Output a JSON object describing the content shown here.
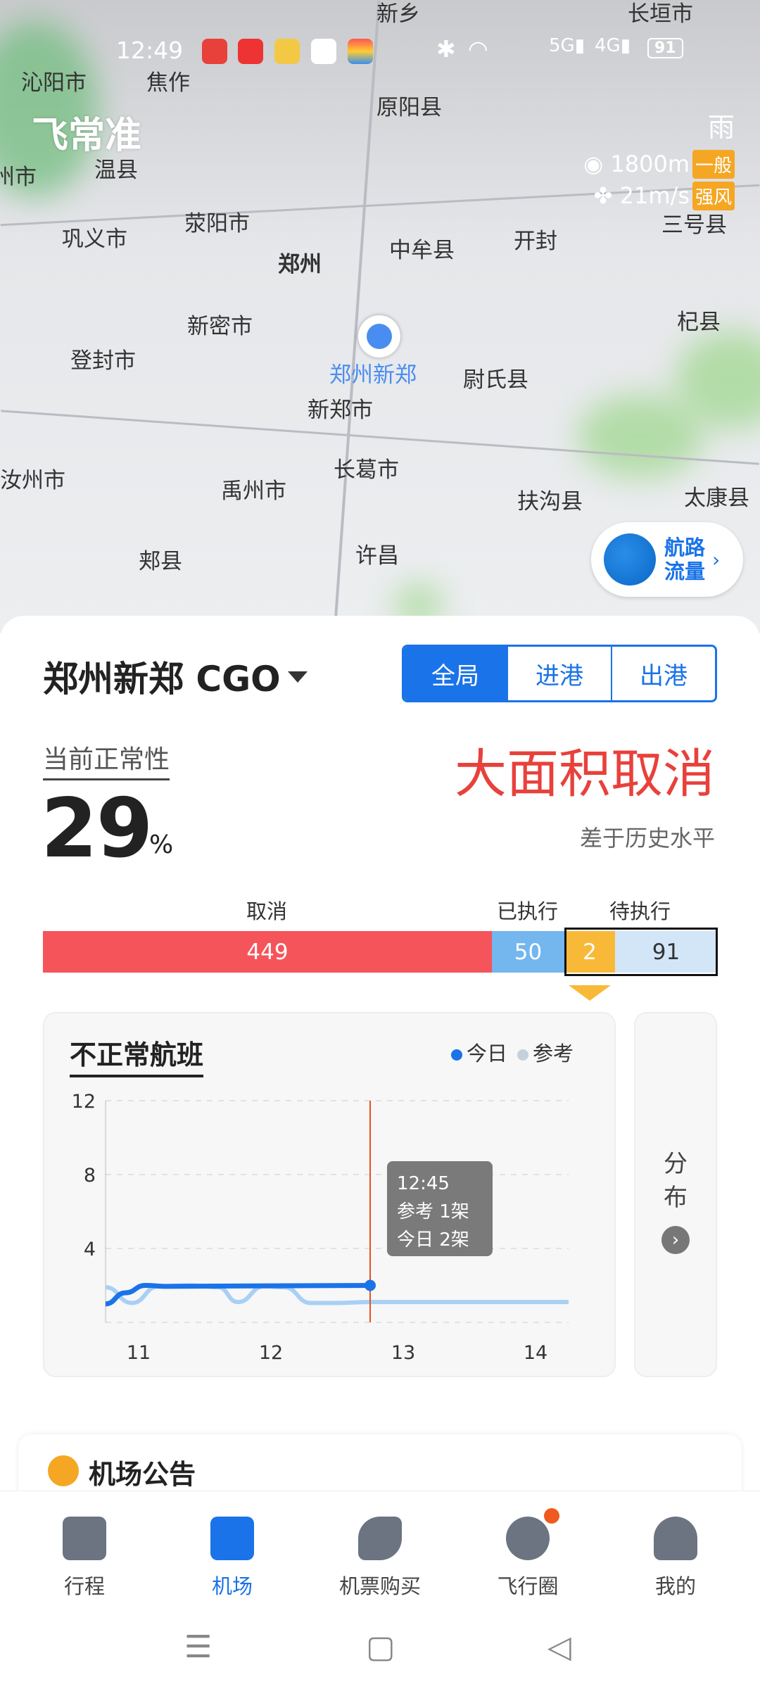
{
  "status_bar": {
    "time": "12:49",
    "battery": "91",
    "icons": [
      "video-app-icon",
      "toutiao-icon",
      "vip-icon",
      "baidu-icon",
      "wallet-icon",
      "bluetooth-icon",
      "wifi-icon",
      "hd-icon",
      "5g-signal-icon",
      "4g-signal-icon",
      "battery-icon",
      "charging-icon"
    ]
  },
  "app_logo": "飞常准",
  "weather": {
    "condition": "雨",
    "visibility": "1800m",
    "visibility_tag": "一般",
    "wind": "21m/s",
    "wind_tag": "强风",
    "tag_color": "#f5a623"
  },
  "map": {
    "cities": [
      "新乡",
      "焦作",
      "沁阳市",
      "原阳县",
      "温县",
      "州市",
      "三号县",
      "巩义市",
      "荥阳市",
      "郑州",
      "中牟县",
      "开封",
      "新密市",
      "杞县",
      "登封市",
      "新郑市",
      "尉氏县",
      "汝州市",
      "长葛市",
      "禹州市",
      "扶沟县",
      "太康县",
      "郏县",
      "许昌",
      "长垣市"
    ],
    "location_label": "郑州新郑"
  },
  "traffic_button": {
    "line1": "航路",
    "line2": "流量"
  },
  "airport": {
    "name": "郑州新郑 CGO",
    "tabs": [
      "全局",
      "进港",
      "出港"
    ],
    "active_tab": "全局"
  },
  "normality": {
    "label": "当前正常性",
    "value": "29",
    "unit": "%",
    "status": "大面积取消",
    "status_color": "#e8413b",
    "compare": "差于历史水平"
  },
  "flights_bar": {
    "labels": {
      "cancelled": "取消",
      "executed": "已执行",
      "pending": "待执行"
    },
    "segments": [
      {
        "key": "cancelled",
        "value": 449,
        "color": "#f5545a"
      },
      {
        "key": "executed",
        "value": 50,
        "color": "#74b6ee"
      },
      {
        "key": "pending_delayed",
        "value": 2,
        "color": "#f9b938"
      },
      {
        "key": "pending",
        "value": 91,
        "color": "#d3e6f7"
      }
    ]
  },
  "chart_data": {
    "type": "line",
    "title": "不正常航班",
    "legend": [
      "今日",
      "参考"
    ],
    "legend_placement": "top-right",
    "y_ticks": [
      4,
      8,
      12
    ],
    "ylim": [
      0,
      12
    ],
    "x_ticks": [
      11,
      12,
      13,
      14
    ],
    "xlim": [
      10.75,
      14.25
    ],
    "grid": "horizontal-dashed",
    "series": [
      {
        "name": "今日",
        "color": "#1a73e8",
        "points": [
          [
            10.75,
            1
          ],
          [
            10.9,
            1.6
          ],
          [
            11.05,
            2
          ],
          [
            11.2,
            1.95
          ],
          [
            12.75,
            2
          ]
        ]
      },
      {
        "name": "参考",
        "color": "#a9cff5",
        "points": [
          [
            10.75,
            1.9
          ],
          [
            10.95,
            1.05
          ],
          [
            11.15,
            1.95
          ],
          [
            11.4,
            2
          ],
          [
            11.6,
            1.9
          ],
          [
            11.75,
            1.1
          ],
          [
            11.95,
            1.95
          ],
          [
            12.1,
            1.9
          ],
          [
            12.3,
            1.05
          ],
          [
            12.5,
            1.05
          ],
          [
            12.75,
            1.1
          ],
          [
            14.25,
            1.1
          ]
        ]
      }
    ],
    "cursor": {
      "time": "12:45",
      "x": 12.75,
      "color": "#e8501f"
    },
    "tooltip": {
      "time": "12:45",
      "ref": "参考 1架",
      "today": "今日 2架"
    }
  },
  "side_card": {
    "label": "分布"
  },
  "notice": {
    "title": "机场公告"
  },
  "nav": {
    "items": [
      "行程",
      "机场",
      "机票购买",
      "飞行圈",
      "我的"
    ],
    "active": "机场"
  }
}
